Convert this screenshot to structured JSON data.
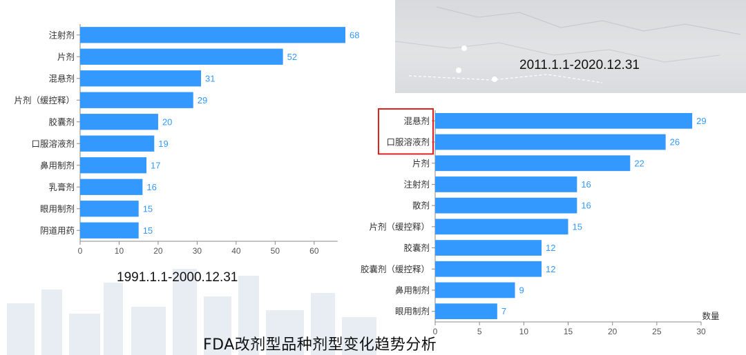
{
  "footer_title": "FDA改剂型品种剂型变化趋势分析",
  "colors": {
    "bar": "#3399ff",
    "value_label": "#3399ff",
    "highlight_box": "#e02020",
    "axis": "#888888"
  },
  "chart_data": [
    {
      "type": "bar",
      "orientation": "horizontal",
      "period_label": "1991.1.1-2000.12.31",
      "categories": [
        "注射剂",
        "片剂",
        "混悬剂",
        "片剂（缓控释）",
        "胶囊剂",
        "口服溶液剂",
        "鼻用制剂",
        "乳膏剂",
        "眼用制剂",
        "阴道用药"
      ],
      "values": [
        68,
        52,
        31,
        29,
        20,
        19,
        17,
        16,
        15,
        15
      ],
      "x_ticks": [
        0,
        10,
        20,
        30,
        40,
        50,
        60
      ],
      "xlim": [
        0,
        66
      ],
      "xlabel": "",
      "grid": false
    },
    {
      "type": "bar",
      "orientation": "horizontal",
      "period_label": "2011.1.1-2020.12.31",
      "categories": [
        "混悬剂",
        "口服溶液剂",
        "片剂",
        "注射剂",
        "散剂",
        "片剂（缓控释）",
        "胶囊剂",
        "胶囊剂（缓控释）",
        "鼻用制剂",
        "眼用制剂"
      ],
      "values": [
        29,
        26,
        22,
        16,
        16,
        15,
        12,
        12,
        9,
        7
      ],
      "x_ticks": [
        0,
        5,
        10,
        15,
        20,
        25,
        30
      ],
      "xlim": [
        0,
        30
      ],
      "xlabel": "数量",
      "grid": false,
      "highlighted_categories": [
        "混悬剂",
        "口服溶液剂"
      ]
    }
  ]
}
